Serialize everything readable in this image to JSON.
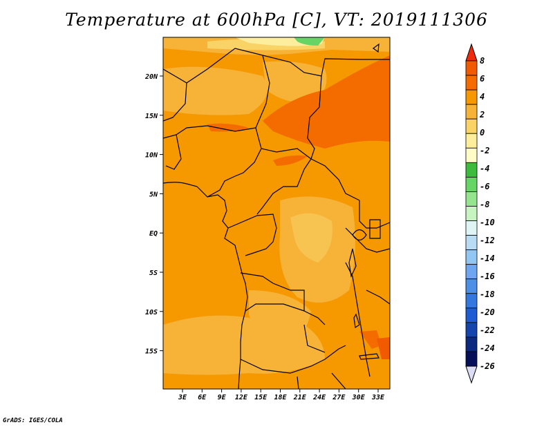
{
  "title": "Temperature at 600hPa [C], VT: 2019111306",
  "credit": "GrADS: IGES/COLA",
  "map": {
    "lat_labels": [
      "20N",
      "15N",
      "10N",
      "5N",
      "EQ",
      "5S",
      "10S",
      "15S"
    ],
    "lon_labels": [
      "3E",
      "6E",
      "9E",
      "12E",
      "15E",
      "18E",
      "21E",
      "24E",
      "27E",
      "30E",
      "33E"
    ],
    "lon_range": [
      0,
      35
    ],
    "lat_range": [
      -20,
      24
    ]
  },
  "colorbar": {
    "labels": [
      "8",
      "6",
      "4",
      "2",
      "0",
      "-2",
      "-4",
      "-6",
      "-8",
      "-10",
      "-12",
      "-14",
      "-16",
      "-18",
      "-20",
      "-22",
      "-24",
      "-26"
    ],
    "colors": [
      "#f02a0b",
      "#f25a00",
      "#f46c00",
      "#f69800",
      "#f7b238",
      "#fad366",
      "#fdee9d",
      "#fffcc8",
      "#3cbb3c",
      "#67d466",
      "#95e58f",
      "#c7f4c1",
      "#dff5f5",
      "#b7dcf3",
      "#93c7f3",
      "#6ea7ef",
      "#4d8ee7",
      "#3477df",
      "#1f5bd2",
      "#1644ad",
      "#0b2a7f",
      "#06105a",
      "#dcdcf5"
    ]
  }
}
